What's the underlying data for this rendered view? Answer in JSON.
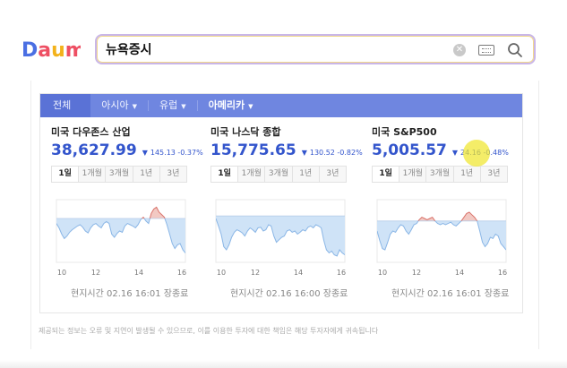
{
  "logo": {
    "text": "Daum"
  },
  "search": {
    "query": "뉴욕증시"
  },
  "tabs": [
    {
      "label": "전체",
      "caret": ""
    },
    {
      "label": "아시아",
      "caret": "▼"
    },
    {
      "label": "유럽",
      "caret": "▼"
    },
    {
      "label": "아메리카",
      "caret": "▼"
    }
  ],
  "period_tabs": [
    "1일",
    "1개월",
    "3개월",
    "1년",
    "3년"
  ],
  "panels": [
    {
      "title": "미국 다우존스 산업",
      "value": "38,627.99",
      "direction": "▼",
      "change": "145.13 -0.37%",
      "time": "현지시간 02.16 16:01 장종료",
      "x_ticks": [
        "10",
        "12",
        "14",
        "16"
      ],
      "series": [
        0.62,
        0.55,
        0.45,
        0.38,
        0.42,
        0.48,
        0.52,
        0.55,
        0.58,
        0.6,
        0.56,
        0.5,
        0.47,
        0.55,
        0.6,
        0.62,
        0.58,
        0.55,
        0.62,
        0.65,
        0.62,
        0.45,
        0.4,
        0.46,
        0.5,
        0.48,
        0.58,
        0.62,
        0.6,
        0.58,
        0.55,
        0.6,
        0.68,
        0.72,
        0.66,
        0.62,
        0.78,
        0.85,
        0.88,
        0.8,
        0.76,
        0.72,
        0.6,
        0.45,
        0.3,
        0.22,
        0.28,
        0.3,
        0.2,
        0.15
      ]
    },
    {
      "title": "미국 나스닥 종합",
      "value": "15,775.65",
      "direction": "▼",
      "change": "130.52 -0.82%",
      "time": "현지시간 02.16 16:00 장종료",
      "x_ticks": [
        "10",
        "12",
        "14",
        "16"
      ],
      "series": [
        0.7,
        0.58,
        0.45,
        0.25,
        0.2,
        0.28,
        0.4,
        0.48,
        0.52,
        0.5,
        0.47,
        0.42,
        0.5,
        0.55,
        0.52,
        0.48,
        0.55,
        0.56,
        0.5,
        0.52,
        0.6,
        0.58,
        0.42,
        0.32,
        0.36,
        0.4,
        0.42,
        0.5,
        0.52,
        0.48,
        0.5,
        0.45,
        0.48,
        0.52,
        0.5,
        0.56,
        0.58,
        0.55,
        0.6,
        0.58,
        0.55,
        0.35,
        0.2,
        0.15,
        0.18,
        0.12,
        0.1,
        0.2,
        0.15,
        0.12
      ]
    },
    {
      "title": "미국 S&P500",
      "value": "5,005.57",
      "direction": "▼",
      "change": "24.16 -0.48%",
      "time": "현지시간 02.16 16:01 장종료",
      "x_ticks": [
        "10",
        "12",
        "14",
        "16"
      ],
      "series": [
        0.5,
        0.35,
        0.22,
        0.2,
        0.32,
        0.45,
        0.5,
        0.48,
        0.55,
        0.6,
        0.58,
        0.5,
        0.45,
        0.52,
        0.6,
        0.62,
        0.68,
        0.72,
        0.7,
        0.68,
        0.7,
        0.72,
        0.66,
        0.62,
        0.6,
        0.62,
        0.6,
        0.62,
        0.64,
        0.6,
        0.58,
        0.62,
        0.66,
        0.72,
        0.78,
        0.8,
        0.76,
        0.72,
        0.66,
        0.5,
        0.32,
        0.25,
        0.3,
        0.4,
        0.38,
        0.45,
        0.42,
        0.3,
        0.25,
        0.2
      ]
    }
  ],
  "baselines": [
    0.7,
    0.74,
    0.66
  ],
  "disclaimer": "제공되는 정보는 오류 및 지연이 발생될 수 있으므로, 이를 이용한 투자에 대한 책임은 해당 투자자에게 귀속됩니다",
  "colors": {
    "tabbar": "#6f86e0",
    "value_blue": "#3355cc",
    "fall_fill": "#cfe3f7",
    "fall_line": "#8ab6e6",
    "rise_fill": "#f2c9c3",
    "rise_line": "#d9726a"
  }
}
